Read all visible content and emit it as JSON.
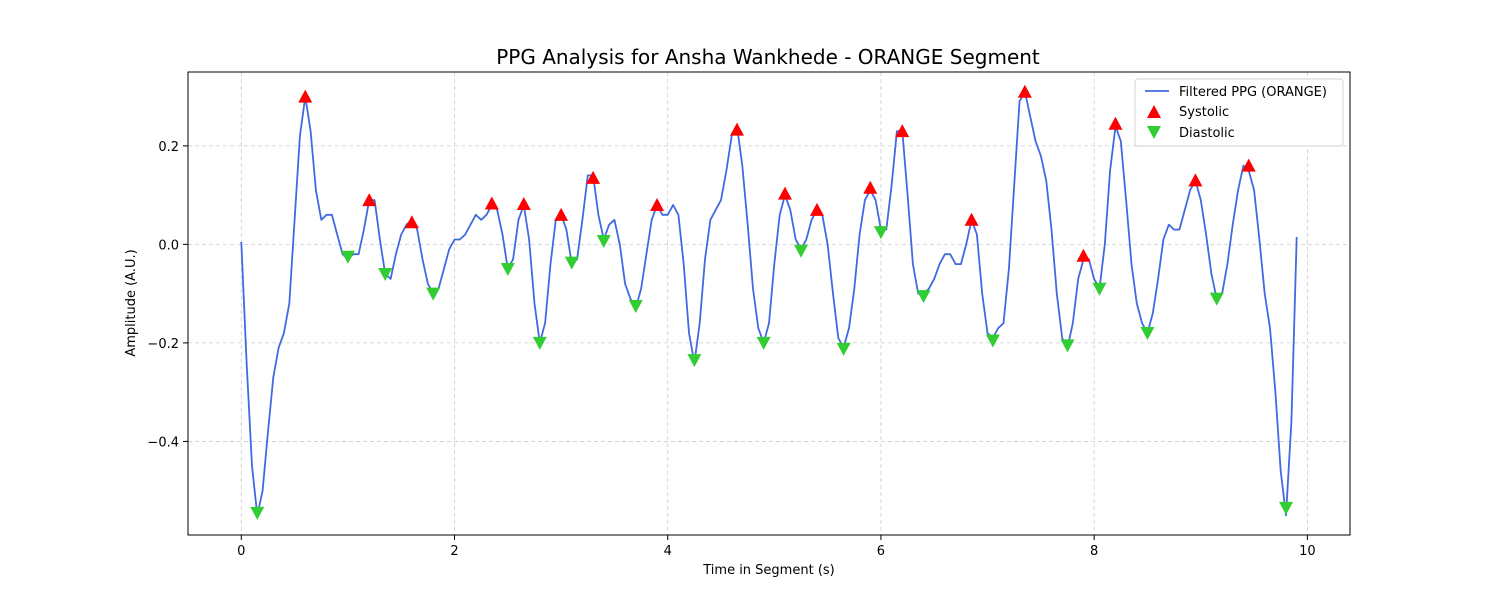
{
  "chart_data": {
    "type": "line",
    "title": "PPG Analysis for Ansha Wankhede - ORANGE Segment",
    "xlabel": "Time in Segment (s)",
    "ylabel": "Amplitude (A.U.)",
    "xlim": [
      -0.5,
      10.4
    ],
    "ylim": [
      -0.59,
      0.35
    ],
    "xticks": [
      0,
      2,
      4,
      6,
      8,
      10
    ],
    "yticks": [
      -0.4,
      -0.2,
      0.0,
      0.2
    ],
    "ytick_labels": [
      "−0.4",
      "−0.2",
      "0.0",
      "0.2"
    ],
    "grid": true,
    "legend_position": "top-right",
    "series": [
      {
        "name": "Filtered PPG (ORANGE)",
        "type": "line",
        "color": "#4169e1",
        "x": [
          0.0,
          0.05,
          0.1,
          0.15,
          0.2,
          0.25,
          0.3,
          0.35,
          0.4,
          0.45,
          0.5,
          0.55,
          0.6,
          0.65,
          0.7,
          0.75,
          0.8,
          0.85,
          0.9,
          0.95,
          1.0,
          1.05,
          1.1,
          1.15,
          1.2,
          1.25,
          1.3,
          1.35,
          1.4,
          1.45,
          1.5,
          1.55,
          1.6,
          1.65,
          1.7,
          1.75,
          1.8,
          1.85,
          1.9,
          1.95,
          2.0,
          2.05,
          2.1,
          2.15,
          2.2,
          2.25,
          2.3,
          2.35,
          2.4,
          2.45,
          2.5,
          2.55,
          2.6,
          2.65,
          2.7,
          2.75,
          2.8,
          2.85,
          2.9,
          2.95,
          3.0,
          3.05,
          3.1,
          3.15,
          3.2,
          3.25,
          3.3,
          3.35,
          3.4,
          3.45,
          3.5,
          3.55,
          3.6,
          3.65,
          3.7,
          3.75,
          3.8,
          3.85,
          3.9,
          3.95,
          4.0,
          4.05,
          4.1,
          4.15,
          4.2,
          4.25,
          4.3,
          4.35,
          4.4,
          4.45,
          4.5,
          4.55,
          4.6,
          4.65,
          4.7,
          4.75,
          4.8,
          4.85,
          4.9,
          4.95,
          5.0,
          5.05,
          5.1,
          5.15,
          5.2,
          5.25,
          5.3,
          5.35,
          5.4,
          5.45,
          5.5,
          5.55,
          5.6,
          5.65,
          5.7,
          5.75,
          5.8,
          5.85,
          5.9,
          5.95,
          6.0,
          6.05,
          6.1,
          6.15,
          6.2,
          6.25,
          6.3,
          6.35,
          6.4,
          6.45,
          6.5,
          6.55,
          6.6,
          6.65,
          6.7,
          6.75,
          6.8,
          6.85,
          6.9,
          6.95,
          7.0,
          7.05,
          7.1,
          7.15,
          7.2,
          7.25,
          7.3,
          7.35,
          7.4,
          7.45,
          7.5,
          7.55,
          7.6,
          7.65,
          7.7,
          7.75,
          7.8,
          7.85,
          7.9,
          7.95,
          8.0,
          8.05,
          8.1,
          8.15,
          8.2,
          8.25,
          8.3,
          8.35,
          8.4,
          8.45,
          8.5,
          8.55,
          8.6,
          8.65,
          8.7,
          8.75,
          8.8,
          8.85,
          8.9,
          8.95,
          9.0,
          9.05,
          9.1,
          9.15,
          9.2,
          9.25,
          9.3,
          9.35,
          9.4,
          9.45,
          9.5,
          9.55,
          9.6,
          9.65,
          9.7,
          9.75,
          9.8,
          9.85,
          9.9
        ],
        "y": [
          0.005,
          -0.24,
          -0.45,
          -0.55,
          -0.5,
          -0.38,
          -0.27,
          -0.21,
          -0.18,
          -0.12,
          0.05,
          0.22,
          0.3,
          0.23,
          0.11,
          0.05,
          0.06,
          0.06,
          0.02,
          -0.02,
          -0.03,
          -0.02,
          -0.02,
          0.03,
          0.09,
          0.09,
          0.01,
          -0.06,
          -0.07,
          -0.02,
          0.02,
          0.04,
          0.05,
          0.03,
          -0.03,
          -0.08,
          -0.1,
          -0.09,
          -0.05,
          -0.01,
          0.01,
          0.01,
          0.02,
          0.04,
          0.06,
          0.05,
          0.06,
          0.08,
          0.07,
          0.02,
          -0.05,
          -0.03,
          0.05,
          0.08,
          0.01,
          -0.12,
          -0.2,
          -0.16,
          -0.04,
          0.05,
          0.06,
          0.03,
          -0.04,
          -0.03,
          0.05,
          0.14,
          0.14,
          0.06,
          0.01,
          0.04,
          0.05,
          0.0,
          -0.08,
          -0.11,
          -0.13,
          -0.09,
          -0.02,
          0.05,
          0.08,
          0.06,
          0.06,
          0.08,
          0.06,
          -0.04,
          -0.18,
          -0.24,
          -0.16,
          -0.03,
          0.05,
          0.07,
          0.09,
          0.15,
          0.22,
          0.24,
          0.16,
          0.04,
          -0.09,
          -0.17,
          -0.2,
          -0.16,
          -0.04,
          0.06,
          0.1,
          0.07,
          0.01,
          -0.01,
          0.01,
          0.05,
          0.07,
          0.06,
          0.0,
          -0.1,
          -0.19,
          -0.21,
          -0.17,
          -0.09,
          0.02,
          0.09,
          0.11,
          0.09,
          0.03,
          0.03,
          0.12,
          0.23,
          0.23,
          0.1,
          -0.04,
          -0.1,
          -0.1,
          -0.09,
          -0.07,
          -0.04,
          -0.02,
          -0.02,
          -0.04,
          -0.04,
          0.0,
          0.05,
          0.02,
          -0.1,
          -0.18,
          -0.19,
          -0.17,
          -0.16,
          -0.05,
          0.12,
          0.29,
          0.31,
          0.26,
          0.21,
          0.18,
          0.13,
          0.03,
          -0.1,
          -0.19,
          -0.21,
          -0.16,
          -0.07,
          -0.03,
          -0.03,
          -0.07,
          -0.09,
          0.0,
          0.15,
          0.24,
          0.21,
          0.09,
          -0.04,
          -0.12,
          -0.16,
          -0.18,
          -0.14,
          -0.07,
          0.01,
          0.04,
          0.03,
          0.03,
          0.07,
          0.11,
          0.13,
          0.09,
          0.02,
          -0.06,
          -0.11,
          -0.1,
          -0.04,
          0.04,
          0.11,
          0.16,
          0.15,
          0.11,
          0.01,
          -0.1,
          -0.17,
          -0.3,
          -0.46,
          -0.55,
          -0.36,
          0.015
        ]
      },
      {
        "name": "Systolic",
        "type": "scatter",
        "marker": "triangle-up",
        "color": "#ff0000",
        "x": [
          0.6,
          1.2,
          1.6,
          2.35,
          2.65,
          3.0,
          3.3,
          3.9,
          4.65,
          5.1,
          5.4,
          5.9,
          6.2,
          6.85,
          7.35,
          7.9,
          8.2,
          8.95,
          9.45
        ],
        "y": [
          0.3,
          0.09,
          0.045,
          0.083,
          0.082,
          0.06,
          0.135,
          0.08,
          0.233,
          0.103,
          0.07,
          0.115,
          0.23,
          0.05,
          0.31,
          -0.023,
          0.245,
          0.13,
          0.16
        ]
      },
      {
        "name": "Diastolic",
        "type": "scatter",
        "marker": "triangle-down",
        "color": "#32cd32",
        "x": [
          0.15,
          1.0,
          1.35,
          1.8,
          2.5,
          2.8,
          3.1,
          3.4,
          3.7,
          4.25,
          4.9,
          5.25,
          5.65,
          6.0,
          6.4,
          7.05,
          7.75,
          8.05,
          8.5,
          9.15,
          9.8
        ],
        "y": [
          -0.545,
          -0.025,
          -0.06,
          -0.1,
          -0.05,
          -0.2,
          -0.037,
          0.007,
          -0.125,
          -0.235,
          -0.2,
          -0.013,
          -0.212,
          0.025,
          -0.105,
          -0.195,
          -0.205,
          -0.09,
          -0.18,
          -0.11,
          -0.535
        ]
      }
    ]
  }
}
